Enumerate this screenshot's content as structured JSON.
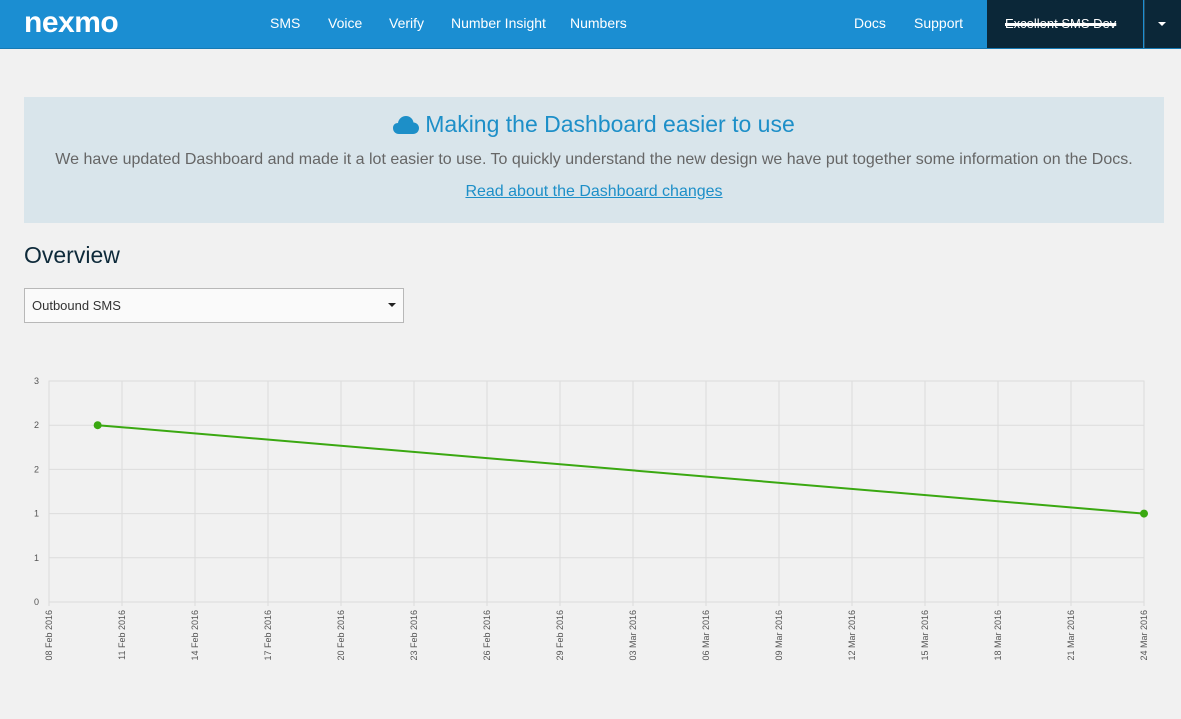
{
  "header": {
    "logo": "nexmo",
    "nav": [
      "SMS",
      "Voice",
      "Verify",
      "Number Insight",
      "Numbers"
    ],
    "right_links": [
      "Docs",
      "Support"
    ],
    "account_name": "Excellent SMS Dev"
  },
  "banner": {
    "icon": "cloud-icon",
    "title": "Making the Dashboard easier to use",
    "text": "We have updated Dashboard and made it a lot easier to use. To quickly understand the new design we have put together some information on the Docs.",
    "link": "Read about the Dashboard changes"
  },
  "overview": {
    "title": "Overview",
    "select_value": "Outbound SMS"
  },
  "colors": {
    "header": "#1b8ed2",
    "accent": "#1d8fc8",
    "series": "#3aa811"
  },
  "chart_data": {
    "type": "line",
    "y_tick_labels": [
      "0",
      "1",
      "1",
      "2",
      "2",
      "3"
    ],
    "ylim": [
      0,
      2.5
    ],
    "x_tick_labels": [
      "08 Feb 2016",
      "11 Feb 2016",
      "14 Feb 2016",
      "17 Feb 2016",
      "20 Feb 2016",
      "23 Feb 2016",
      "26 Feb 2016",
      "29 Feb 2016",
      "03 Mar 2016",
      "06 Mar 2016",
      "09 Mar 2016",
      "12 Mar 2016",
      "15 Mar 2016",
      "18 Mar 2016",
      "21 Mar 2016",
      "24 Mar 2016"
    ],
    "xlim": [
      "2016-02-08",
      "2016-03-24"
    ],
    "grid": true,
    "series": [
      {
        "x": [
          "2016-02-10",
          "2016-03-24"
        ],
        "y": [
          2,
          1
        ]
      }
    ]
  }
}
